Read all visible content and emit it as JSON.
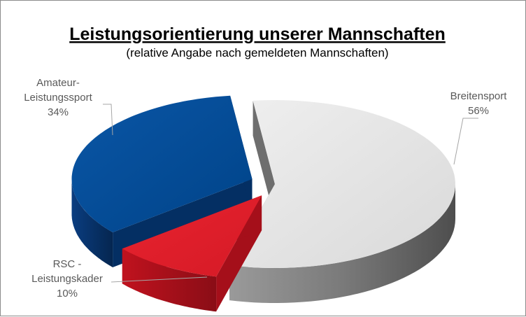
{
  "chart_data": {
    "type": "pie",
    "style": "3d-exploded",
    "title": "Leistungsorientierung  unserer Mannschaften",
    "subtitle": "(relative  Angabe nach gemeldeten  Mannschaften)",
    "slices": [
      {
        "label_lines": [
          "Breitensport"
        ],
        "percent_label": "56%",
        "value": 56,
        "color": "#e0e0e0"
      },
      {
        "label_lines": [
          "RSC -",
          "Leistungskader"
        ],
        "percent_label": "10%",
        "value": 10,
        "color": "#e01b28"
      },
      {
        "label_lines": [
          "Amateur-",
          "Leistungssport"
        ],
        "percent_label": "34%",
        "value": 34,
        "color": "#004c99"
      }
    ],
    "legend": "none",
    "data_labels": "outside-with-leader-lines"
  }
}
